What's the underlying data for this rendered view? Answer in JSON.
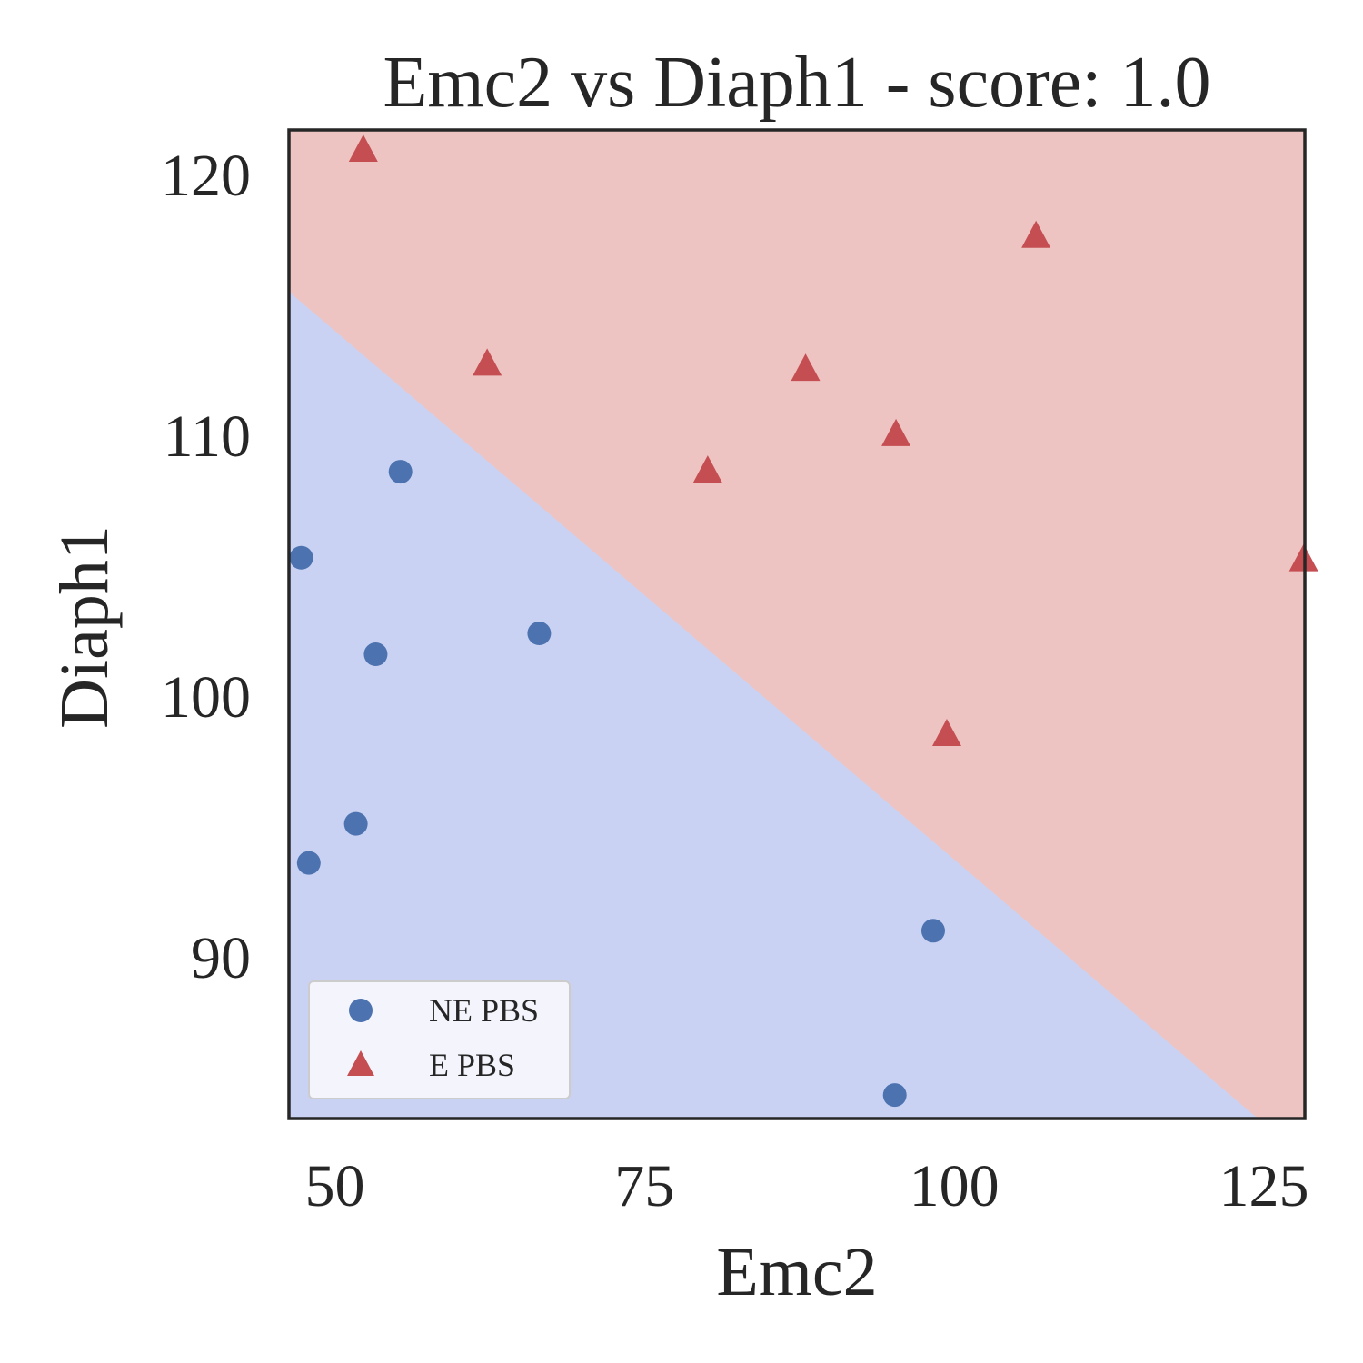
{
  "chart_data": {
    "type": "scatter",
    "title": "Emc2 vs Diaph1 - score: 1.0",
    "xlabel": "Emc2",
    "ylabel": "Diaph1",
    "xlim": [
      46.3,
      128.3
    ],
    "ylim": [
      83.8,
      121.7
    ],
    "x_ticks": [
      50,
      75,
      100,
      125
    ],
    "y_ticks": [
      90,
      100,
      110,
      120
    ],
    "grid": false,
    "legend_position": "lower-left",
    "decision_boundary": {
      "points": [
        [
          46.3,
          115.5
        ],
        [
          124.5,
          83.8
        ]
      ],
      "regions": [
        {
          "side": "above",
          "color": "#eec4c3"
        },
        {
          "side": "below",
          "color": "#c9d2f2"
        }
      ]
    },
    "series": [
      {
        "name": "NE PBS",
        "marker": "circle",
        "color": "#4c72b0",
        "points": [
          [
            47.3,
            105.3
          ],
          [
            47.9,
            93.6
          ],
          [
            51.7,
            95.1
          ],
          [
            53.3,
            101.6
          ],
          [
            55.3,
            108.6
          ],
          [
            66.5,
            102.4
          ],
          [
            98.3,
            91.0
          ],
          [
            95.2,
            84.7
          ]
        ]
      },
      {
        "name": "E PBS",
        "marker": "triangle",
        "color": "#c44e52",
        "points": [
          [
            52.3,
            120.9
          ],
          [
            62.3,
            112.7
          ],
          [
            80.1,
            108.6
          ],
          [
            88.0,
            112.5
          ],
          [
            95.3,
            110.0
          ],
          [
            99.4,
            98.5
          ],
          [
            106.6,
            117.6
          ],
          [
            128.2,
            105.2
          ]
        ]
      }
    ]
  }
}
